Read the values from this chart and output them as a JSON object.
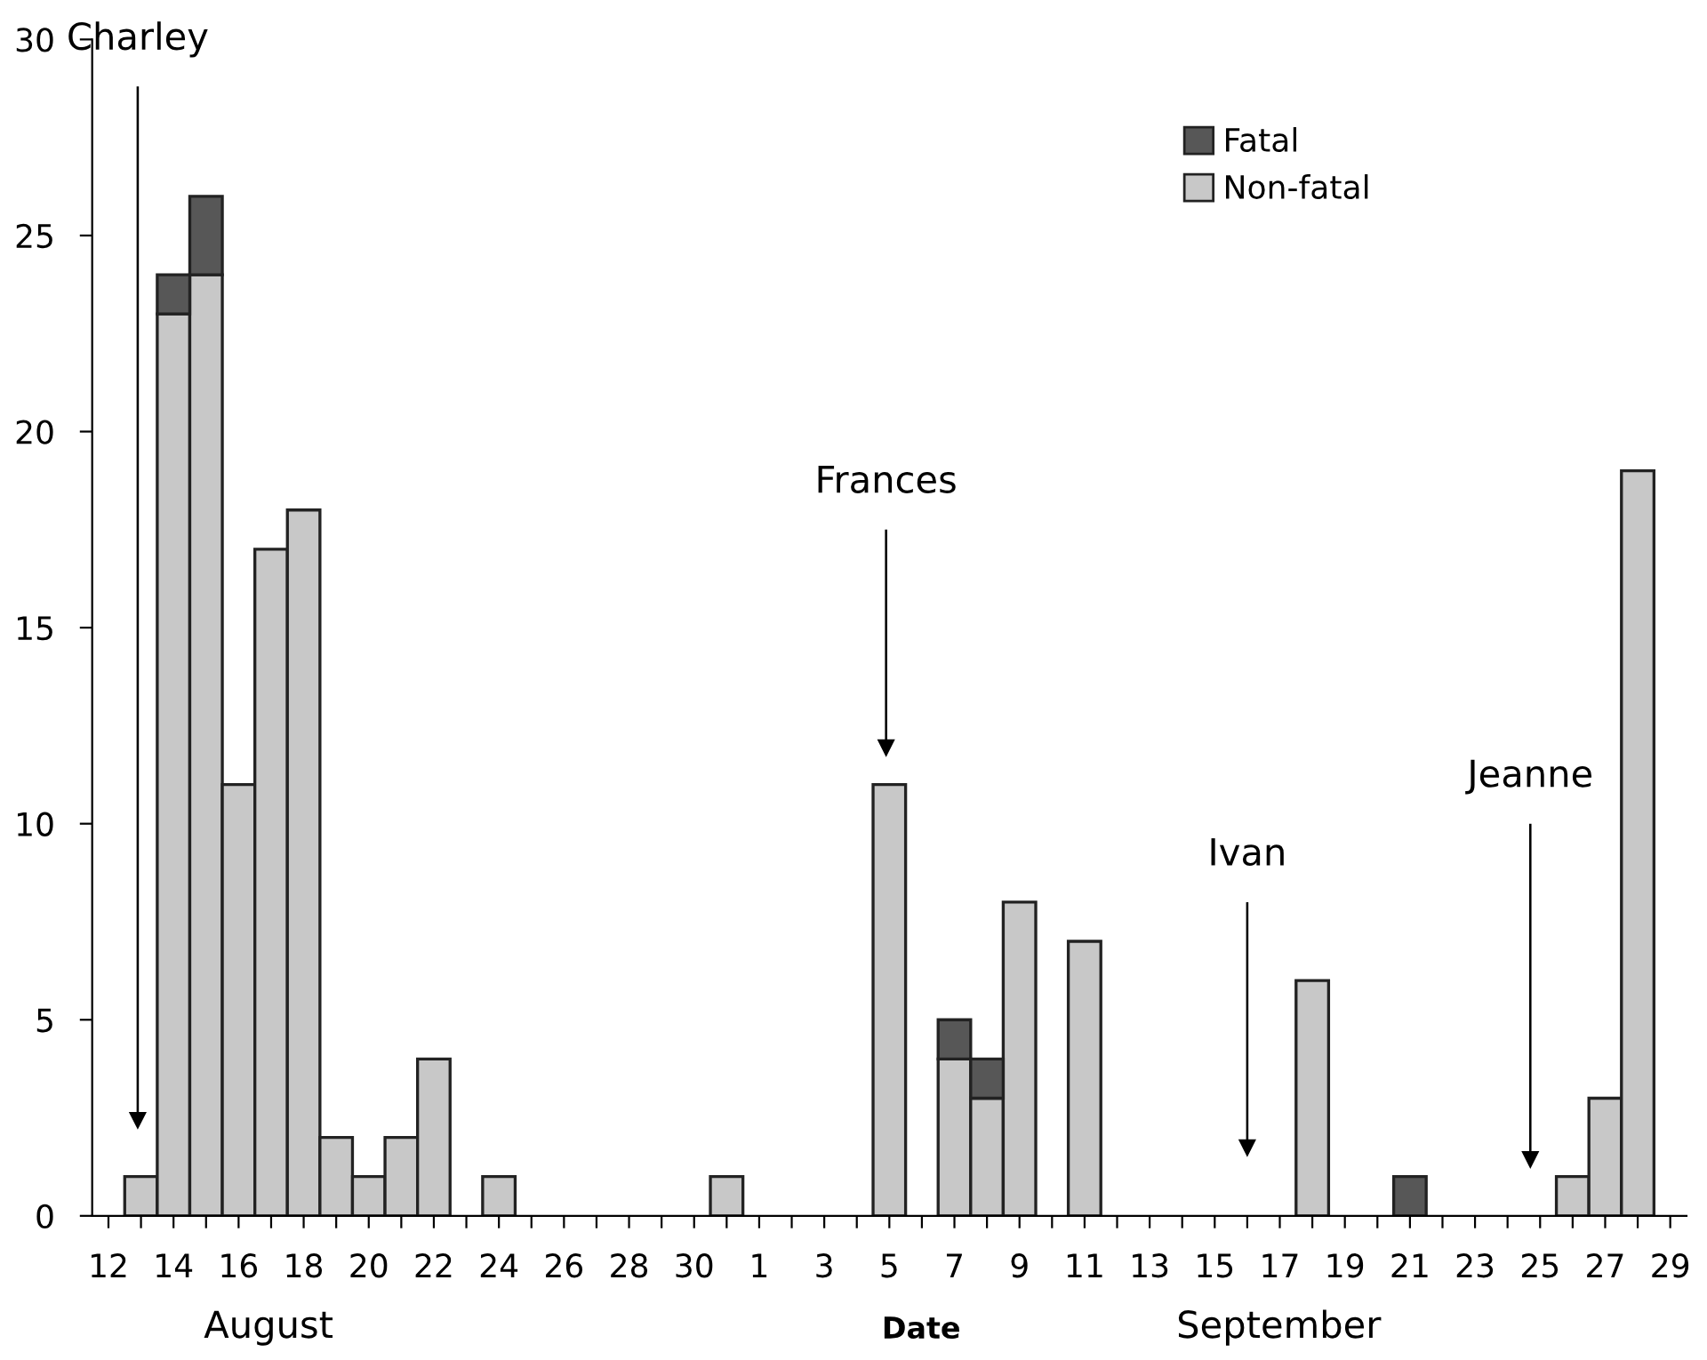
{
  "chart_data": {
    "type": "bar",
    "stacked": true,
    "xlabel": "Date",
    "categories": [
      "12",
      null,
      "14",
      null,
      "16",
      null,
      "18",
      null,
      "20",
      null,
      "22",
      null,
      "24",
      null,
      "26",
      null,
      "28",
      null,
      "30",
      null,
      "1",
      null,
      "3",
      null,
      "5",
      null,
      "7",
      null,
      "9",
      null,
      "11",
      null,
      "13",
      null,
      "15",
      null,
      "17",
      null,
      "19",
      null,
      "21",
      null,
      "23",
      null,
      "25",
      null,
      "27",
      null,
      "29"
    ],
    "series": [
      {
        "name": "Non-fatal",
        "color": "#c8c8c8",
        "values": [
          null,
          1,
          23,
          24,
          11,
          17,
          18,
          2,
          1,
          2,
          4,
          null,
          1,
          null,
          null,
          null,
          null,
          null,
          null,
          1,
          null,
          null,
          null,
          null,
          11,
          null,
          4,
          3,
          8,
          null,
          7,
          null,
          null,
          null,
          null,
          null,
          null,
          6,
          null,
          null,
          null,
          null,
          null,
          null,
          null,
          1,
          3,
          19,
          null
        ]
      },
      {
        "name": "Fatal",
        "color": "#575757",
        "values": [
          null,
          null,
          1,
          2,
          null,
          null,
          null,
          null,
          null,
          null,
          null,
          null,
          null,
          null,
          null,
          null,
          null,
          null,
          null,
          null,
          null,
          null,
          null,
          null,
          null,
          null,
          1,
          1,
          null,
          null,
          null,
          null,
          null,
          null,
          null,
          null,
          null,
          null,
          null,
          null,
          1,
          null,
          null,
          null,
          null,
          null,
          null,
          null,
          null
        ]
      }
    ],
    "ylim": [
      0,
      30
    ],
    "yticks": [
      0,
      5,
      10,
      15,
      20,
      25,
      30
    ],
    "grid": false,
    "legend": "top right",
    "annotations": [
      "Charley",
      "Frances",
      "Ivan",
      "Jeanne",
      "August",
      "September"
    ]
  }
}
